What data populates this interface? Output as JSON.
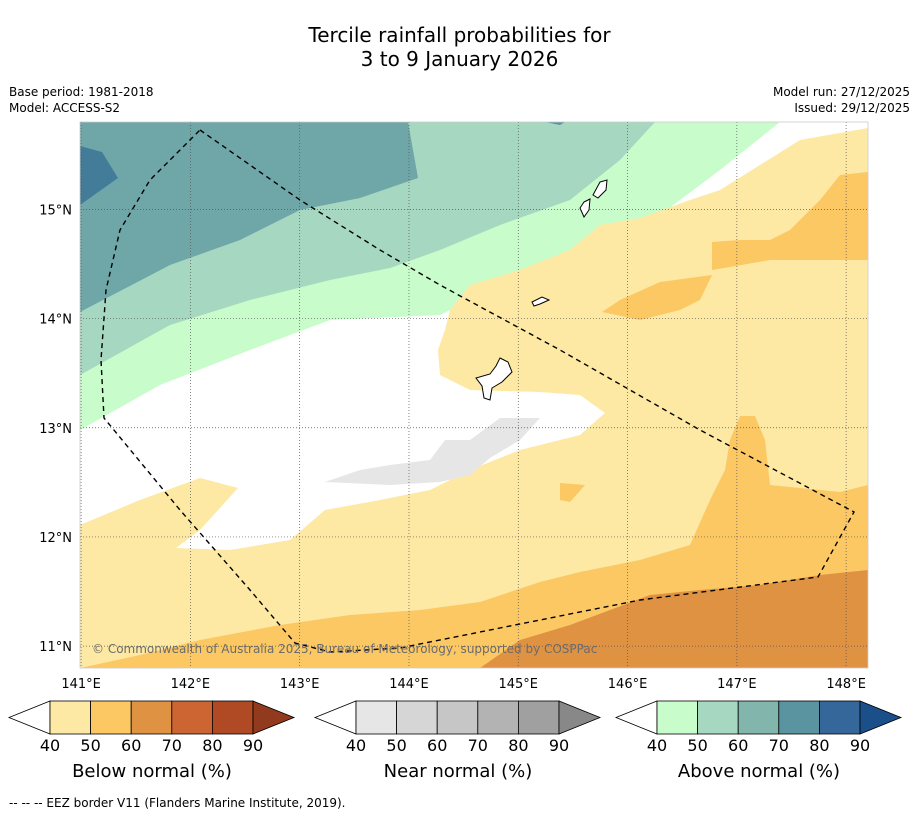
{
  "title": {
    "line1": "Tercile rainfall probabilities for",
    "line2": "3 to 9 January 2026"
  },
  "meta": {
    "base_period": "Base period: 1981-2018",
    "model": "Model: ACCESS-S2",
    "model_run": "Model run: 27/12/2025",
    "issued": "Issued: 29/12/2025"
  },
  "map": {
    "copyright": "© Commonwealth of Australia 2025, Bureau of Meteorology, supported by COSPPac",
    "lon_labels": [
      "141°E",
      "142°E",
      "143°E",
      "144°E",
      "145°E",
      "146°E",
      "147°E",
      "148°E"
    ],
    "lat_labels": [
      "15°N",
      "14°N",
      "13°N",
      "12°N",
      "11°N"
    ],
    "lon_range": [
      140.99,
      148.2
    ],
    "lat_range": [
      10.8,
      15.8
    ]
  },
  "colorbars": [
    {
      "name": "below",
      "label": "Below normal (%)",
      "ticks": [
        "40",
        "50",
        "60",
        "70",
        "80",
        "90"
      ],
      "colors": [
        "#ffffff",
        "#fde9a3",
        "#fcc864",
        "#e09243",
        "#cd6533",
        "#b04a24",
        "#923a1e"
      ]
    },
    {
      "name": "near",
      "label": "Near normal (%)",
      "ticks": [
        "40",
        "50",
        "60",
        "70",
        "80",
        "90"
      ],
      "colors": [
        "#ffffff",
        "#e6e6e6",
        "#d6d6d6",
        "#c6c6c6",
        "#b3b3b3",
        "#a0a0a0",
        "#888888"
      ]
    },
    {
      "name": "above",
      "label": "Above normal (%)",
      "ticks": [
        "40",
        "50",
        "60",
        "70",
        "80",
        "90"
      ],
      "colors": [
        "#ffffff",
        "#c9fccb",
        "#a6d7c0",
        "#82b6ad",
        "#5a94a0",
        "#35679a",
        "#1b4f8a"
      ]
    }
  ],
  "footnote": "--  --  -- EEZ border V11 (Flanders Marine Institute, 2019)."
}
